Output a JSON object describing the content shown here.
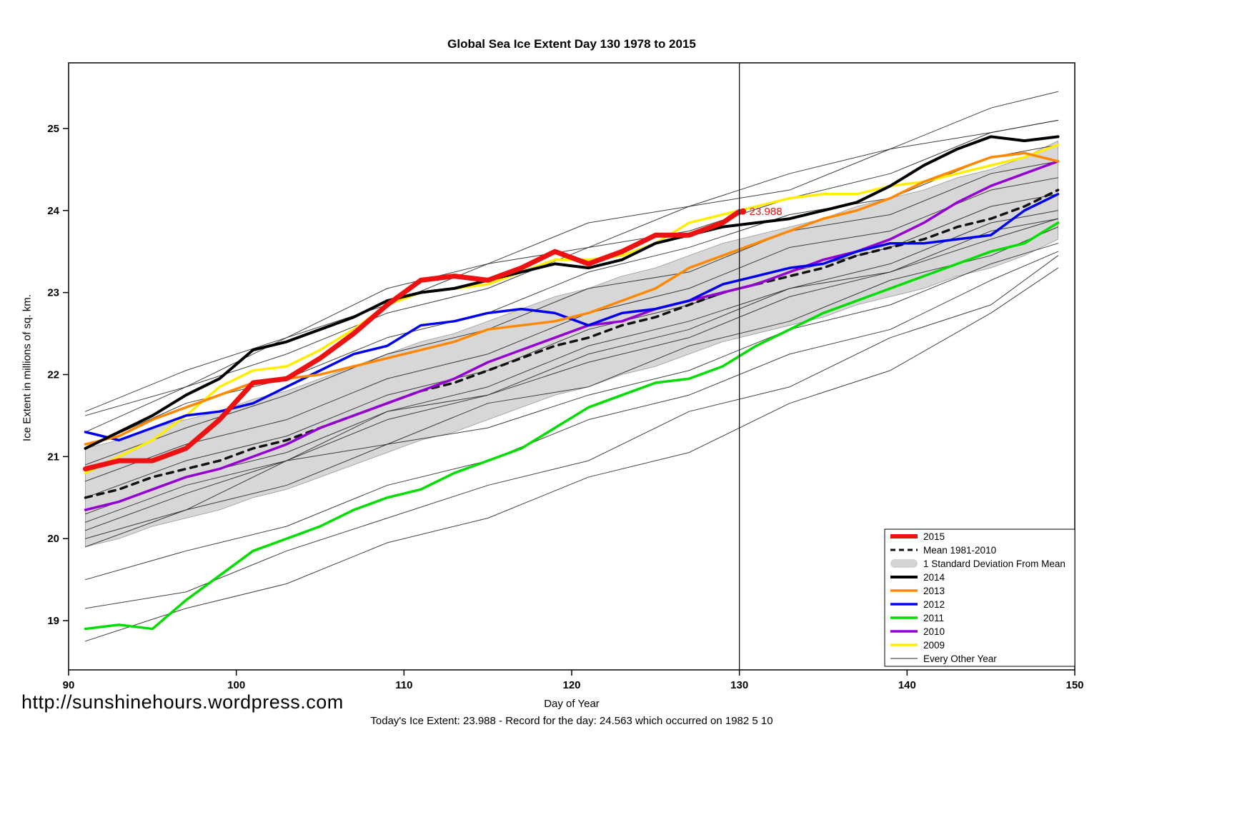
{
  "page": {
    "title": "Global Sea Ice Extent Day 130 1978 to 2015",
    "footer_url": "http://sunshinehours.wordpress.com",
    "footer_note": "Today's Ice Extent: 23.988  - Record for the day: 24.563 which occurred on 1982 5 10"
  },
  "chart_data": {
    "type": "line",
    "title": "Global Sea Ice Extent Day 130 1978 to 2015",
    "xlabel": "Day of Year",
    "ylabel": "Ice Extent in millions of sq. km.",
    "xlim": [
      90,
      150
    ],
    "ylim": [
      18.4,
      25.8
    ],
    "xticks": [
      90,
      100,
      110,
      120,
      130,
      140,
      150
    ],
    "yticks": [
      19,
      20,
      21,
      22,
      23,
      24,
      25
    ],
    "vline_x": 130,
    "annotation": {
      "x": 130,
      "y": 23.988,
      "label": "23.988",
      "color": "#ee1111"
    },
    "x": [
      91,
      93,
      95,
      97,
      99,
      101,
      103,
      105,
      107,
      109,
      111,
      113,
      115,
      117,
      119,
      121,
      123,
      125,
      127,
      129,
      131,
      133,
      135,
      137,
      139,
      141,
      143,
      145,
      147,
      149
    ],
    "mean_1981_2010": {
      "label": "Mean 1981-2010",
      "color": "#111111",
      "sd": 0.6,
      "band_color": "#d3d3d3",
      "band_label": "1 Standard Deviation From Mean",
      "values": [
        20.5,
        20.6,
        20.75,
        20.85,
        20.95,
        21.1,
        21.2,
        21.35,
        21.5,
        21.65,
        21.8,
        21.9,
        22.05,
        22.2,
        22.35,
        22.45,
        22.6,
        22.7,
        22.85,
        23.0,
        23.1,
        23.2,
        23.3,
        23.45,
        23.55,
        23.65,
        23.8,
        23.9,
        24.05,
        24.25
      ]
    },
    "series": [
      {
        "name": "2015",
        "color": "#ee1111",
        "width": 7,
        "x": [
          91,
          93,
          95,
          97,
          99,
          101,
          103,
          105,
          107,
          109,
          111,
          113,
          115,
          117,
          119,
          121,
          123,
          125,
          127,
          129,
          130
        ],
        "values": [
          20.85,
          20.95,
          20.95,
          21.1,
          21.45,
          21.9,
          21.95,
          22.2,
          22.5,
          22.85,
          23.15,
          23.2,
          23.15,
          23.3,
          23.5,
          23.35,
          23.5,
          23.7,
          23.7,
          23.85,
          23.988
        ]
      },
      {
        "name": "2014",
        "color": "#000000",
        "width": 4,
        "values": [
          21.1,
          21.3,
          21.5,
          21.75,
          21.95,
          22.3,
          22.4,
          22.55,
          22.7,
          22.9,
          23.0,
          23.05,
          23.15,
          23.25,
          23.35,
          23.3,
          23.4,
          23.6,
          23.7,
          23.8,
          23.85,
          23.9,
          24.0,
          24.1,
          24.3,
          24.55,
          24.75,
          24.9,
          24.85,
          24.9
        ]
      },
      {
        "name": "2013",
        "color": "#ff8800",
        "width": 3.5,
        "values": [
          21.15,
          21.25,
          21.45,
          21.6,
          21.75,
          21.9,
          21.95,
          22.0,
          22.1,
          22.2,
          22.3,
          22.4,
          22.55,
          22.6,
          22.65,
          22.75,
          22.9,
          23.05,
          23.3,
          23.45,
          23.6,
          23.75,
          23.9,
          24.0,
          24.15,
          24.35,
          24.5,
          24.65,
          24.7,
          24.6
        ]
      },
      {
        "name": "2012",
        "color": "#0000ee",
        "width": 3.5,
        "values": [
          21.3,
          21.2,
          21.35,
          21.5,
          21.55,
          21.65,
          21.85,
          22.05,
          22.25,
          22.35,
          22.6,
          22.65,
          22.75,
          22.8,
          22.75,
          22.6,
          22.75,
          22.8,
          22.9,
          23.1,
          23.2,
          23.3,
          23.35,
          23.5,
          23.6,
          23.6,
          23.65,
          23.7,
          24.0,
          24.2
        ]
      },
      {
        "name": "2011",
        "color": "#00dd00",
        "width": 3.5,
        "values": [
          18.9,
          18.95,
          18.9,
          19.25,
          19.55,
          19.85,
          20.0,
          20.15,
          20.35,
          20.5,
          20.6,
          20.8,
          20.95,
          21.1,
          21.35,
          21.6,
          21.75,
          21.9,
          21.95,
          22.1,
          22.35,
          22.55,
          22.75,
          22.9,
          23.05,
          23.2,
          23.35,
          23.5,
          23.6,
          23.85
        ]
      },
      {
        "name": "2010",
        "color": "#9400d3",
        "width": 3.5,
        "values": [
          20.35,
          20.45,
          20.6,
          20.75,
          20.85,
          21.0,
          21.15,
          21.35,
          21.5,
          21.65,
          21.8,
          21.95,
          22.15,
          22.3,
          22.45,
          22.6,
          22.65,
          22.8,
          22.9,
          23.0,
          23.1,
          23.25,
          23.4,
          23.5,
          23.65,
          23.85,
          24.1,
          24.3,
          24.45,
          24.6
        ]
      },
      {
        "name": "2009",
        "color": "#ffee00",
        "width": 3.5,
        "values": [
          20.8,
          21.0,
          21.2,
          21.5,
          21.85,
          22.05,
          22.1,
          22.3,
          22.55,
          22.85,
          23.0,
          23.05,
          23.1,
          23.25,
          23.4,
          23.4,
          23.45,
          23.6,
          23.85,
          23.95,
          24.05,
          24.15,
          24.2,
          24.2,
          24.3,
          24.35,
          24.45,
          24.55,
          24.65,
          24.8
        ]
      }
    ],
    "other_years": {
      "label": "Every Other Year",
      "color": "#2a2a2a",
      "width": 1,
      "x": [
        91,
        97,
        103,
        109,
        115,
        121,
        127,
        133,
        139,
        145,
        149
      ],
      "lines": [
        [
          18.75,
          19.15,
          19.45,
          19.95,
          20.25,
          20.75,
          21.05,
          21.65,
          22.05,
          22.75,
          23.3
        ],
        [
          19.15,
          19.35,
          19.85,
          20.25,
          20.65,
          20.95,
          21.55,
          21.85,
          22.45,
          22.85,
          23.45
        ],
        [
          19.5,
          19.85,
          20.15,
          20.65,
          20.95,
          21.45,
          21.75,
          22.25,
          22.55,
          23.15,
          23.5
        ],
        [
          19.9,
          20.35,
          20.65,
          21.15,
          21.35,
          21.75,
          22.05,
          22.55,
          22.85,
          23.35,
          23.6
        ],
        [
          20.0,
          20.35,
          20.95,
          21.15,
          21.65,
          21.85,
          22.35,
          22.65,
          23.15,
          23.45,
          23.8
        ],
        [
          20.1,
          20.55,
          20.95,
          21.45,
          21.75,
          22.15,
          22.45,
          22.95,
          23.25,
          23.75,
          23.9
        ],
        [
          20.3,
          20.75,
          21.05,
          21.55,
          21.85,
          22.35,
          22.65,
          23.05,
          23.35,
          23.85,
          24.0
        ],
        [
          20.5,
          20.95,
          21.25,
          21.75,
          22.05,
          22.55,
          22.85,
          23.25,
          23.55,
          24.05,
          24.2
        ],
        [
          20.7,
          21.15,
          21.45,
          21.95,
          22.25,
          22.75,
          23.05,
          23.55,
          23.75,
          24.25,
          24.4
        ],
        [
          20.9,
          21.35,
          21.75,
          22.25,
          22.55,
          23.05,
          23.25,
          23.75,
          23.95,
          24.45,
          24.6
        ],
        [
          21.1,
          21.65,
          21.95,
          22.45,
          22.75,
          23.25,
          23.55,
          23.95,
          24.15,
          24.65,
          24.8
        ],
        [
          21.3,
          21.85,
          22.25,
          22.75,
          23.05,
          23.55,
          23.75,
          24.15,
          24.45,
          24.95,
          25.1
        ],
        [
          21.55,
          22.05,
          22.45,
          23.05,
          23.35,
          23.85,
          24.05,
          24.45,
          24.75,
          25.25,
          25.45
        ],
        [
          21.5,
          21.85,
          22.45,
          22.85,
          23.35,
          23.55,
          24.05,
          24.25,
          24.75,
          24.95,
          25.1
        ],
        [
          20.2,
          20.65,
          20.95,
          21.55,
          21.75,
          22.25,
          22.55,
          23.05,
          23.25,
          23.65,
          23.9
        ]
      ]
    },
    "legend": {
      "position": "bottom-right",
      "items": [
        {
          "label": "2015",
          "swatch": "line",
          "color": "#ee1111",
          "width": 6
        },
        {
          "label": "Mean 1981-2010",
          "swatch": "dashed",
          "color": "#111111",
          "width": 3
        },
        {
          "label": "1 Standard Deviation From Mean",
          "swatch": "band",
          "color": "#d3d3d3",
          "width": 12
        },
        {
          "label": "2014",
          "swatch": "line",
          "color": "#000000",
          "width": 4
        },
        {
          "label": "2013",
          "swatch": "line",
          "color": "#ff8800",
          "width": 3.5
        },
        {
          "label": "2012",
          "swatch": "line",
          "color": "#0000ee",
          "width": 3.5
        },
        {
          "label": "2011",
          "swatch": "line",
          "color": "#00dd00",
          "width": 3.5
        },
        {
          "label": "2010",
          "swatch": "line",
          "color": "#9400d3",
          "width": 3.5
        },
        {
          "label": "2009",
          "swatch": "line",
          "color": "#ffee00",
          "width": 3.5
        },
        {
          "label": "Every Other Year",
          "swatch": "line",
          "color": "#2a2a2a",
          "width": 1
        }
      ]
    }
  }
}
